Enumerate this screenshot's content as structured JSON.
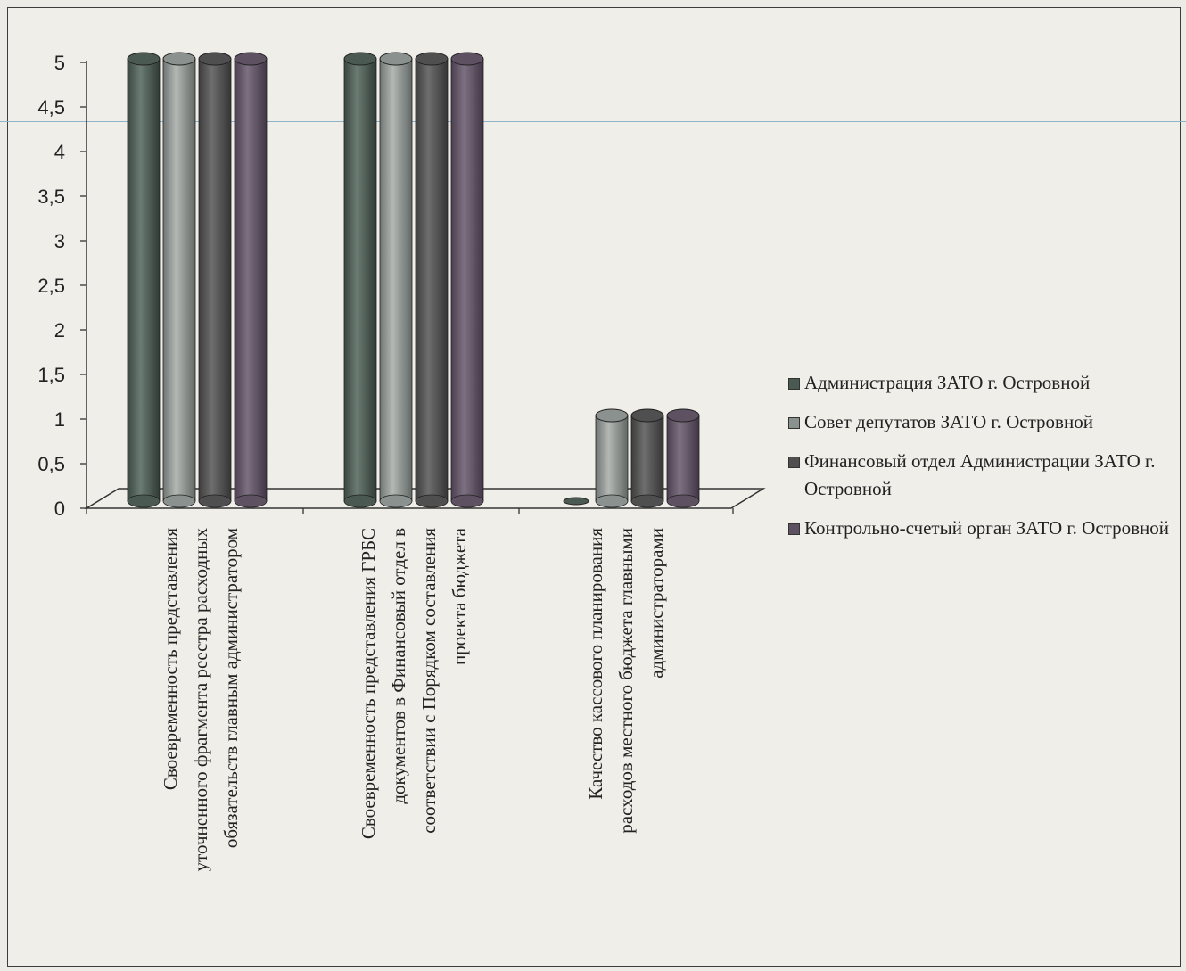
{
  "chart_data": {
    "type": "bar",
    "style": "3d-cylinder",
    "categories": [
      "Своевременность представления уточненного фрагмента реестра расходных обязательств главным администратором",
      "Своевременность представления ГРБС документов в Финансовый отдел в соответствии с Порядком составления проекта бюджета",
      "Качество кассового планирования расходов местного бюджета главными администраторами"
    ],
    "series": [
      {
        "name": "Администрация ЗАТО г. Островной",
        "values": [
          5,
          5,
          0
        ],
        "color": "#4a5a52"
      },
      {
        "name": "Совет депутатов ЗАТО г. Островной",
        "values": [
          5,
          5,
          1
        ],
        "color": "#8b918e"
      },
      {
        "name": "Финансовый отдел Администрации ЗАТО г. Островной",
        "values": [
          5,
          5,
          1
        ],
        "color": "#4f4f4f"
      },
      {
        "name": "Контрольно-счетый орган ЗАТО г. Островной",
        "values": [
          5,
          5,
          1
        ],
        "color": "#5e5262"
      }
    ],
    "y_ticks": [
      "0",
      "0,5",
      "1",
      "1,5",
      "2",
      "2,5",
      "3",
      "3,5",
      "4",
      "4,5",
      "5"
    ],
    "ylim": [
      0,
      5
    ],
    "grid": false,
    "legend_position": "right"
  }
}
